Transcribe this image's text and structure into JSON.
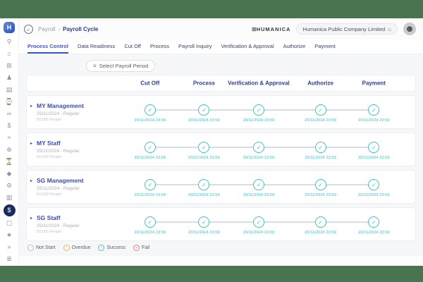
{
  "topbar": {
    "breadcrumb": {
      "section": "Payroll",
      "separator": "›",
      "current": "Payroll Cycle"
    },
    "brand": "HUMANICA",
    "company": "Humanica Public Company Limited"
  },
  "icons": {
    "back": "←",
    "brand_mark": "⊠",
    "building": "⌂",
    "avatar_glyph": "☻",
    "menu": "≡",
    "caret": "▸",
    "check": "✓",
    "logo_letter": "H"
  },
  "sidebar": {
    "items": [
      {
        "name": "search",
        "glyph": "⚲"
      },
      {
        "name": "home",
        "glyph": "⌂"
      },
      {
        "name": "organization",
        "glyph": "⊞"
      },
      {
        "name": "employees",
        "glyph": "♟"
      },
      {
        "name": "company",
        "glyph": "▤"
      },
      {
        "name": "attendance",
        "glyph": "⌚"
      },
      {
        "name": "team",
        "glyph": "∞"
      },
      {
        "name": "compensation",
        "glyph": "$"
      },
      {
        "name": "reports",
        "glyph": "≈"
      },
      {
        "name": "benefits",
        "glyph": "⊕"
      },
      {
        "name": "time",
        "glyph": "⌛"
      },
      {
        "name": "security",
        "glyph": "◆"
      },
      {
        "name": "settings",
        "glyph": "⚙"
      },
      {
        "name": "wallet",
        "glyph": "▥"
      },
      {
        "name": "payroll-cycle",
        "glyph": "$",
        "active": true
      },
      {
        "name": "documents",
        "glyph": "▢"
      },
      {
        "name": "awards",
        "glyph": "★"
      },
      {
        "name": "collapse",
        "glyph": "»"
      },
      {
        "name": "preferences",
        "glyph": "≣"
      }
    ]
  },
  "tabs": [
    "Process Control",
    "Data Readiness",
    "Cut Off",
    "Process",
    "Payroll Inquiry",
    "Verification & Approval",
    "Authorize",
    "Payment"
  ],
  "active_tab": "Process Control",
  "toolbar": {
    "select_period": "Select Payroll Period"
  },
  "columns": [
    "Cut Off",
    "Process",
    "Verification & Approval",
    "Authorize",
    "Payment"
  ],
  "rows": [
    {
      "name": "MY Management",
      "period": "25/11/2024 - Regular",
      "people": "50,000 People",
      "status": "success",
      "dates": [
        "20/11/2024 23:59",
        "20/11/2024 23:59",
        "20/11/2024 23:59",
        "20/11/2024 23:59",
        "23/11/2024 23:59"
      ]
    },
    {
      "name": "MY Staff",
      "period": "25/11/2024 - Regular",
      "people": "50,000 People",
      "status": "success",
      "dates": [
        "20/11/2024 23:59",
        "20/11/2024 23:59",
        "20/11/2024 23:59",
        "20/11/2024 23:59",
        "23/11/2024 23:59"
      ]
    },
    {
      "name": "SG Management",
      "period": "25/11/2024 - Regular",
      "people": "50,000 People",
      "status": "success",
      "dates": [
        "20/11/2024 23:59",
        "20/11/2024 23:59",
        "20/11/2024 23:59",
        "20/11/2024 23:59",
        "23/11/2024 23:59"
      ]
    },
    {
      "name": "SG Staff",
      "period": "25/11/2024 - Regular",
      "people": "50,000 People",
      "status": "success",
      "dates": [
        "20/11/2024 23:59",
        "20/11/2024 23:59",
        "20/11/2024 23:59",
        "20/11/2024 23:59",
        "23/11/2024 23:59"
      ]
    }
  ],
  "legend": [
    {
      "label": "Not Start",
      "glyph": "–",
      "state": "not-start"
    },
    {
      "label": "Overdue",
      "glyph": "!",
      "state": "overdue"
    },
    {
      "label": "Success",
      "glyph": "✓",
      "state": "success"
    },
    {
      "label": "Fail",
      "glyph": "✕",
      "state": "fail"
    }
  ],
  "colors": {
    "accent_teal": "#3bc2c8",
    "primary_blue": "#2f3d8f",
    "frame_green": "#4a7350"
  }
}
